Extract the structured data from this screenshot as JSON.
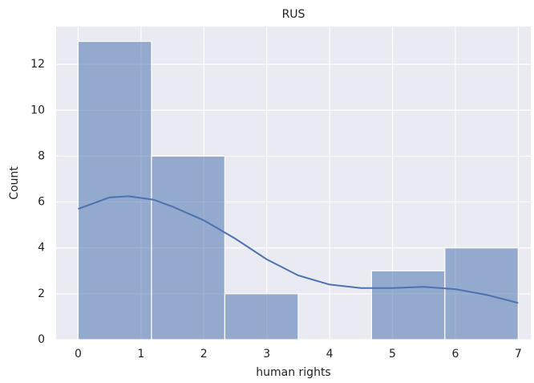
{
  "chart_data": {
    "type": "histogram",
    "title": "RUS",
    "x_label": "human rights",
    "y_label": "Count",
    "bins": [
      0,
      1.167,
      2.333,
      3.5,
      4.667,
      5.833,
      7
    ],
    "values": [
      13,
      8,
      2,
      0,
      3,
      4
    ],
    "color": "#4c72b0",
    "kde": {
      "x": [
        0,
        0.5,
        0.8,
        1.2,
        1.5,
        2,
        2.5,
        3,
        3.5,
        4,
        4.5,
        5,
        5.5,
        6,
        6.5,
        7
      ],
      "values": [
        5.7,
        6.2,
        6.25,
        6.1,
        5.8,
        5.2,
        4.4,
        3.5,
        2.8,
        2.4,
        2.25,
        2.25,
        2.3,
        2.2,
        1.95,
        1.6
      ]
    },
    "xlim": [
      -0.35,
      7.2
    ],
    "ylim": [
      0,
      13.65
    ],
    "xticks": [
      0,
      1,
      2,
      3,
      4,
      5,
      6,
      7
    ],
    "yticks": [
      0,
      2,
      4,
      6,
      8,
      10,
      12
    ],
    "grid": true
  }
}
